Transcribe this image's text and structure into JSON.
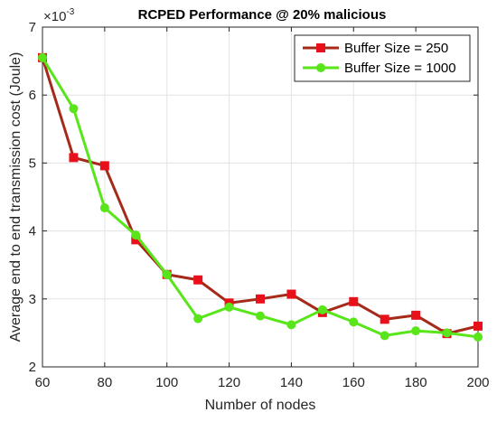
{
  "chart_data": {
    "type": "line",
    "title": "RCPED Performance @ 20% malicious",
    "xlabel": "Number of nodes",
    "ylabel": "Average end to end transmission cost (Joule)",
    "y_multiplier": {
      "base": "×10",
      "exponent": "-3"
    },
    "xlim": [
      60,
      200
    ],
    "ylim": [
      2,
      7
    ],
    "xticks": [
      60,
      80,
      100,
      120,
      140,
      160,
      180,
      200
    ],
    "yticks": [
      2,
      3,
      4,
      5,
      6,
      7
    ],
    "x": [
      60,
      70,
      80,
      90,
      100,
      110,
      120,
      130,
      140,
      150,
      160,
      170,
      180,
      190,
      200
    ],
    "series": [
      {
        "name": "Buffer Size = 250",
        "line_color": "#a52a1a",
        "marker_color": "#e8111b",
        "marker": "square",
        "values": [
          6.55,
          5.08,
          4.96,
          3.87,
          3.36,
          3.28,
          2.94,
          3.0,
          3.07,
          2.8,
          2.96,
          2.7,
          2.76,
          2.49,
          2.6
        ]
      },
      {
        "name": "Buffer Size = 1000",
        "line_color": "#58e51a",
        "marker_color": "#58e51a",
        "marker": "circle",
        "values": [
          6.55,
          5.8,
          4.34,
          3.94,
          3.36,
          2.71,
          2.88,
          2.75,
          2.62,
          2.84,
          2.66,
          2.46,
          2.53,
          2.5,
          2.44
        ]
      }
    ],
    "legend_position": "top-right",
    "grid": true
  }
}
